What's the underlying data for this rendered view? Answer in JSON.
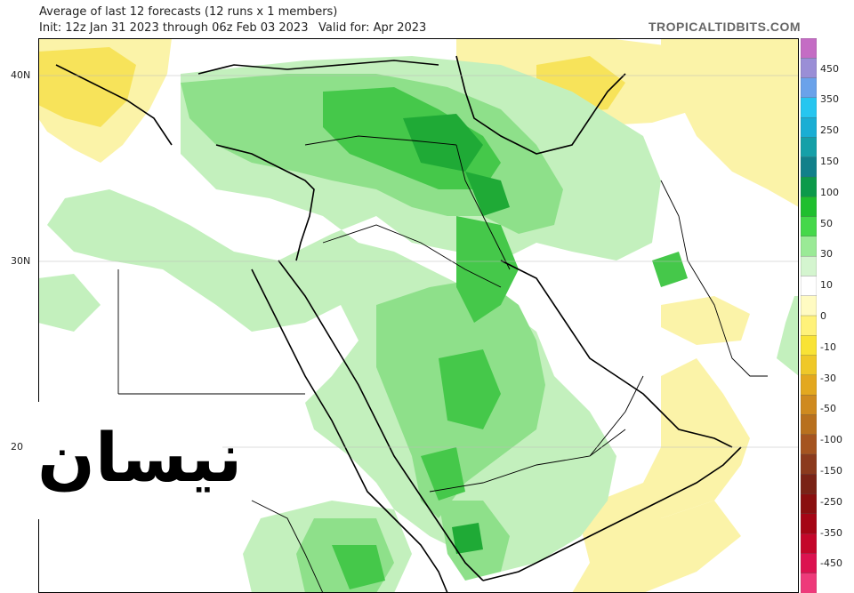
{
  "header": {
    "title": "Average of last 12 forecasts (12 runs x 1 members)",
    "init": "Init: 12z Jan 31 2023 through 06z Feb 03 2023",
    "valid": "Valid for: Apr 2023",
    "brand": "TROPICALTIDBITS.COM"
  },
  "map": {
    "lat_labels": [
      "40N",
      "30N",
      "20"
    ],
    "overlay_text": "نيسان"
  },
  "colorbar": {
    "labels": [
      "450",
      "350",
      "250",
      "150",
      "100",
      "50",
      "30",
      "10",
      "0",
      "-10",
      "-30",
      "-50",
      "-100",
      "-150",
      "-250",
      "-350",
      "-450"
    ],
    "colors": [
      "#c46cc4",
      "#9a8ed6",
      "#6aa2ea",
      "#26c6f0",
      "#1aaed4",
      "#15a0a8",
      "#11808a",
      "#0c9a4a",
      "#1fbf2e",
      "#45d84a",
      "#9aea96",
      "#d4f5cf",
      "#ffffff",
      "#fffbc2",
      "#fff27a",
      "#f9e335",
      "#efc828",
      "#e3a81f",
      "#cf8a1f",
      "#b8701e",
      "#a55420",
      "#8b3a1d",
      "#7a2316",
      "#8a0f0f",
      "#a50515",
      "#c4062a",
      "#dc1250",
      "#ee3a7a"
    ]
  }
}
